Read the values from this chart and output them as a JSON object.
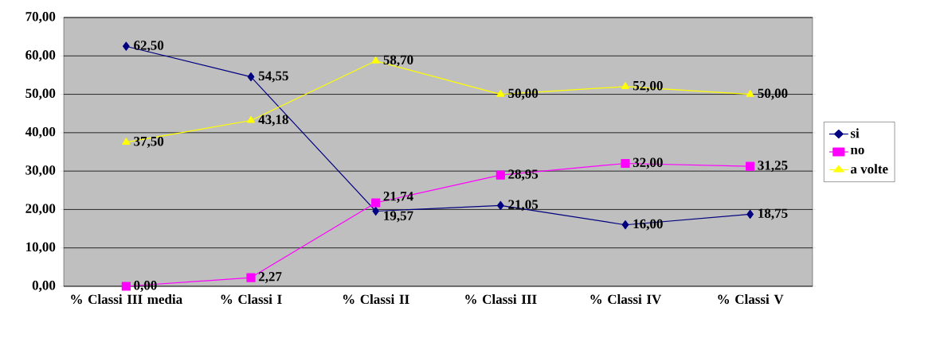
{
  "chart_data": {
    "type": "line",
    "categories": [
      "% Classi III media",
      "% Classi I",
      "% Classi II",
      "% Classi III",
      "% Classi IV",
      "% Classi V"
    ],
    "series": [
      {
        "name": "si",
        "color": "#000080",
        "marker": "diamond",
        "values": [
          62.5,
          54.55,
          19.57,
          21.05,
          16.0,
          18.75
        ],
        "value_labels": [
          "62,50",
          "54,55",
          "19,57",
          "21,05",
          "16,00",
          "18,75"
        ]
      },
      {
        "name": "no",
        "color": "#ff00ff",
        "marker": "square",
        "values": [
          0.0,
          2.27,
          21.74,
          28.95,
          32.0,
          31.25
        ],
        "value_labels": [
          "0,00",
          "2,27",
          "21,74",
          "28,95",
          "32,00",
          "31,25"
        ]
      },
      {
        "name": "a volte",
        "color": "#ffff00",
        "marker": "triangle",
        "values": [
          37.5,
          43.18,
          58.7,
          50.0,
          52.0,
          50.0
        ],
        "value_labels": [
          "37,50",
          "43,18",
          "58,70",
          "50,00",
          "52,00",
          "50,00"
        ]
      }
    ],
    "ylim": [
      0,
      70
    ],
    "yticks": [
      {
        "value": 0,
        "label": "0,00"
      },
      {
        "value": 10,
        "label": "10,00"
      },
      {
        "value": 20,
        "label": "20,00"
      },
      {
        "value": 30,
        "label": "30,00"
      },
      {
        "value": 40,
        "label": "40,00"
      },
      {
        "value": 50,
        "label": "50,00"
      },
      {
        "value": 60,
        "label": "60,00"
      },
      {
        "value": 70,
        "label": "70,00"
      }
    ],
    "grid": "y",
    "legend": "right",
    "line_style": "solid"
  }
}
